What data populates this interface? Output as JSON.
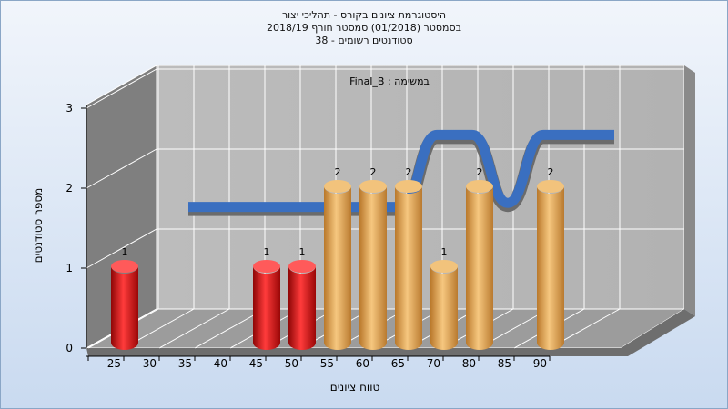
{
  "titles": {
    "line1": "היסטוגרמת ציונים בקורס - תהליכי יצור",
    "line2": "בסמסטר  (01/2018)  סמסטר חורף 2018/19",
    "line3": "סטודנטים רשומים - 38"
  },
  "colors": {
    "low": "#dd1111",
    "high": "#e3a44a",
    "curve": "#3a6fc0",
    "curve_shadow": "#6b6b6b"
  },
  "chart_data": {
    "type": "bar",
    "subtitle": "Final_B : במשימה",
    "xlabel": "טווח ציונים",
    "ylabel": "מספר סטודנטים",
    "ylim": [
      0,
      3
    ],
    "yticks": [
      "0",
      "1",
      "2",
      "3"
    ],
    "xticks": [
      "25",
      "30",
      "35",
      "40",
      "45",
      "50",
      "55",
      "60",
      "65",
      "70",
      "80",
      "85",
      "90"
    ],
    "bars": [
      {
        "category": "25",
        "value": 1,
        "group": "low"
      },
      {
        "category": "45",
        "value": 1,
        "group": "low"
      },
      {
        "category": "50",
        "value": 1,
        "group": "low"
      },
      {
        "category": "55",
        "value": 2,
        "group": "high"
      },
      {
        "category": "60",
        "value": 2,
        "group": "high"
      },
      {
        "category": "65",
        "value": 2,
        "group": "high"
      },
      {
        "category": "70",
        "value": 1,
        "group": "high"
      },
      {
        "category": "80",
        "value": 2,
        "group": "high"
      },
      {
        "category": "90",
        "value": 2,
        "group": "high"
      }
    ],
    "curve": {
      "x": [
        "25",
        "30",
        "35",
        "40",
        "45",
        "50",
        "55",
        "60",
        "65",
        "70",
        "80",
        "85",
        "90"
      ],
      "y": [
        1.3,
        1.3,
        1.3,
        1.3,
        1.3,
        1.3,
        1.3,
        2.2,
        2.2,
        1.35,
        2.2,
        2.2,
        2.2
      ]
    }
  }
}
